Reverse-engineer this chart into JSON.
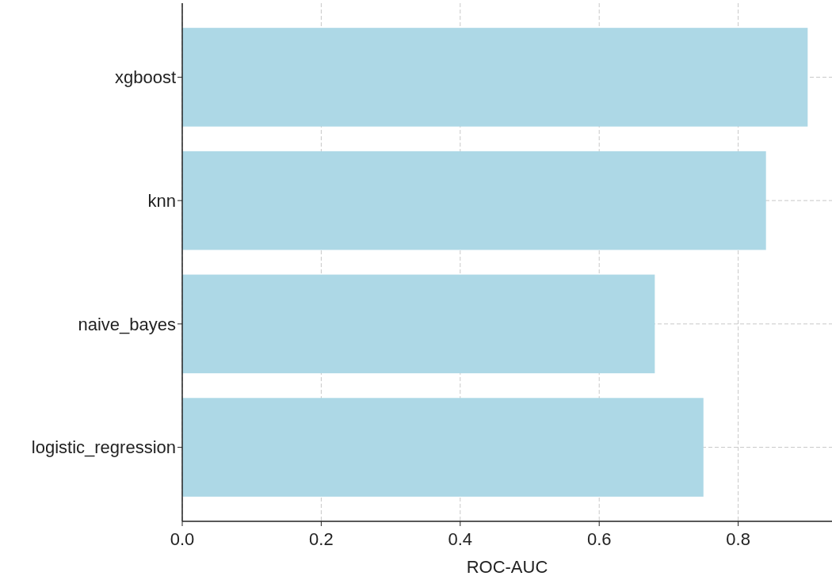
{
  "chart_data": {
    "type": "bar",
    "orientation": "horizontal",
    "xlabel": "ROC-AUC",
    "categories": [
      "xgboost",
      "knn",
      "naive_bayes",
      "logistic_regression"
    ],
    "values": [
      0.9,
      0.84,
      0.68,
      0.75
    ],
    "color": "#add8e6",
    "xlim": [
      0,
      0.935
    ],
    "xticks": [
      {
        "value": 0,
        "label": "0.0"
      },
      {
        "value": 0.2,
        "label": "0.2"
      },
      {
        "value": 0.4,
        "label": "0.4"
      },
      {
        "value": 0.6,
        "label": "0.6"
      },
      {
        "value": 0.8,
        "label": "0.8"
      }
    ],
    "grid": true
  }
}
